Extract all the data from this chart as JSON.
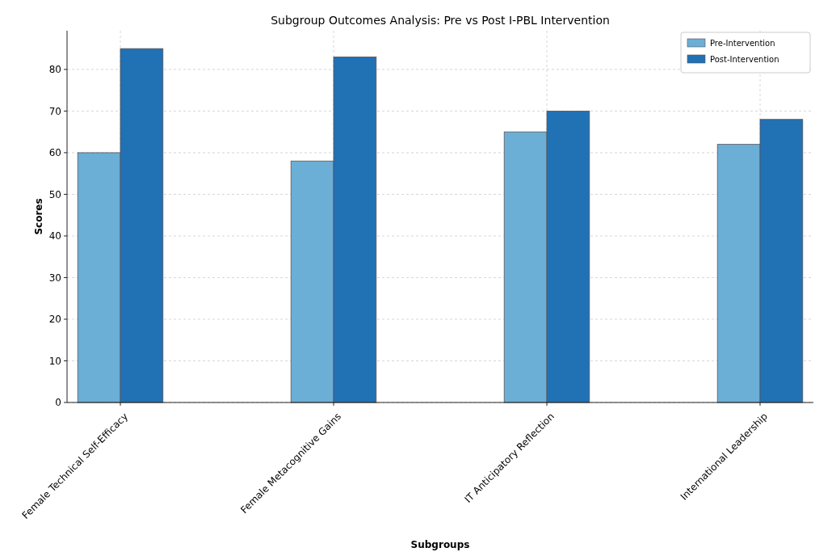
{
  "chart_data": {
    "type": "bar",
    "title": "Subgroup Outcomes Analysis: Pre vs Post I-PBL Intervention",
    "xlabel": "Subgroups",
    "ylabel": "Scores",
    "categories": [
      "Female Technical Self-Efficacy",
      "Female Metacognitive Gains",
      "IT Anticipatory Reflection",
      "International Leadership"
    ],
    "series": [
      {
        "name": "Pre-Intervention",
        "color": "#6baed6",
        "values": [
          60,
          58,
          65,
          62
        ]
      },
      {
        "name": "Post-Intervention",
        "color": "#2171b5",
        "values": [
          85,
          83,
          70,
          68
        ]
      }
    ],
    "ylim": [
      0,
      89.3
    ],
    "yticks": [
      0,
      10,
      20,
      30,
      40,
      50,
      60,
      70,
      80
    ],
    "grid": true,
    "legend": "top right"
  }
}
